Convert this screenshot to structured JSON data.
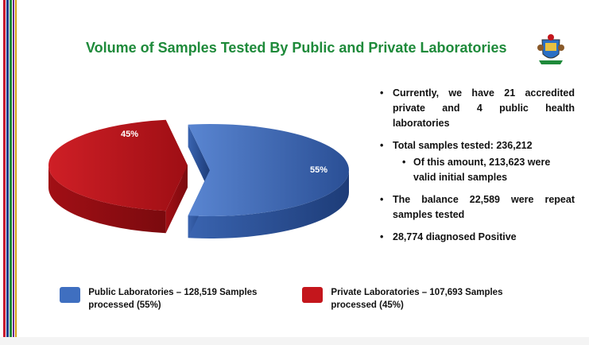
{
  "slide": {
    "title": "Volume of Samples Tested By Public and Private Laboratories",
    "stripe_colors": [
      "#c8102e",
      "#1b3f8f",
      "#1e8a3a",
      "#6a2a8c",
      "#d4a017"
    ]
  },
  "chart_data": {
    "type": "pie",
    "categories": [
      "Public Laboratories",
      "Private Laboratories"
    ],
    "values": [
      55,
      45
    ],
    "labels": [
      "55%",
      "45%"
    ],
    "colors": [
      "#3f6fc0",
      "#c4161c"
    ]
  },
  "bullets": [
    {
      "text": "Currently, we have 21 accredited private and 4 public health laboratories",
      "sub": []
    },
    {
      "text": "Total samples tested: 236,212",
      "sub": [
        "Of this amount, 213,623 were valid initial samples"
      ]
    },
    {
      "text": "The balance 22,589 were repeat samples tested",
      "sub": []
    },
    {
      "text": "28,774 diagnosed Positive",
      "sub": []
    }
  ],
  "legend": [
    {
      "label": "Public Laboratories – 128,519 Samples processed (55%)",
      "color": "#3f6fc0"
    },
    {
      "label": "Private Laboratories – 107,693 Samples processed (45%)",
      "color": "#c4161c"
    }
  ]
}
